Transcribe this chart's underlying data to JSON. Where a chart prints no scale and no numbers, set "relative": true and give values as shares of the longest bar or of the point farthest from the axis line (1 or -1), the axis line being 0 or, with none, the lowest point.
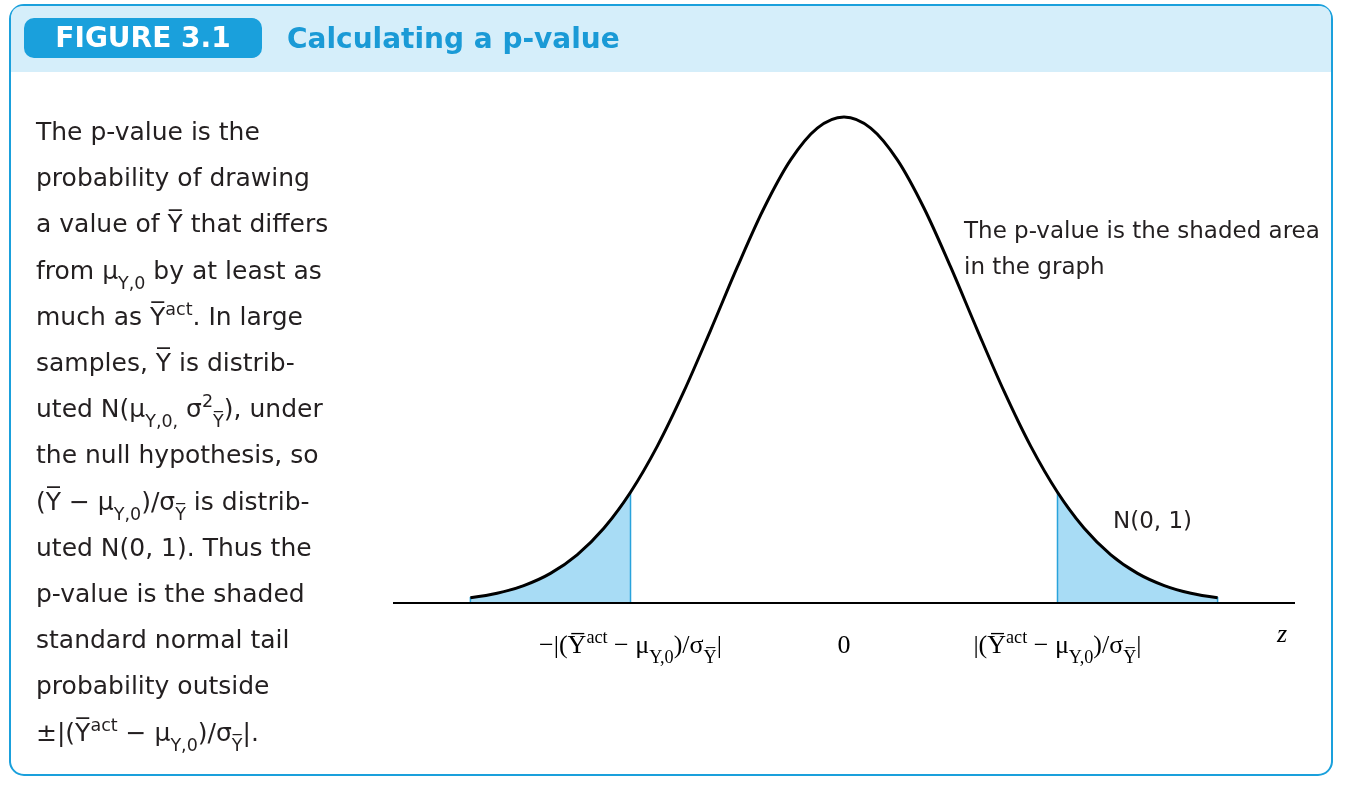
{
  "chart_data": {
    "type": "line",
    "title": "FIGURE 3.1",
    "subtitle": "Calculating a p-value",
    "xlabel": "z",
    "relative": true,
    "categories": [
      null,
      null,
      null,
      null,
      null,
      null,
      "−|(Y̅$^{act}$ − μ$_{Y,0}$)/σ$_{Y̅}$|",
      null,
      null,
      null,
      null,
      null,
      null,
      null,
      "0",
      null,
      null,
      null,
      null,
      null,
      null,
      null,
      "|(Y̅$^{act}$ − μ$_{Y,0}$)/σ$_{Y̅}$|",
      null,
      null,
      null,
      null,
      null,
      null
    ],
    "series": [
      {
        "type": "area",
        "color": "#a8dcf5",
        "values": [
          0.0108,
          0.0201,
          0.0359,
          0.061,
          0.0992,
          0.1538,
          0.2279,
          null,
          null,
          null,
          null,
          null,
          null,
          null,
          null,
          null,
          null,
          null,
          null,
          null,
          null,
          null,
          0.2279,
          0.1538,
          0.0992,
          0.061,
          0.0359,
          0.0201,
          0.0108
        ]
      },
      {
        "type": "line",
        "color": "#000000",
        "values": [
          0.0108,
          0.0201,
          0.0359,
          0.061,
          0.0992,
          0.1538,
          0.2279,
          0.3222,
          0.4352,
          0.5611,
          0.6909,
          0.8122,
          0.9117,
          0.9771,
          1,
          0.9771,
          0.9117,
          0.8122,
          0.6909,
          0.5611,
          0.4352,
          0.3222,
          0.2279,
          0.1538,
          0.0992,
          0.061,
          0.0359,
          0.0201,
          0.0108
        ]
      }
    ],
    "annotations": [
      "The p-value is the\nprobability of drawing\na value of Y̅ that differs\nfrom μ$_{Y,0}$ by at least as\nmuch as Y̅$^{act}$. In large\nsamples, Y̅ is distrib-\nuted N(μ$_{Y,0,}$ σ$^{2}$$_{Y̅}$), under\nthe null hypothesis, so\n(Y̅ − μ$_{Y,0}$)/σ$_{Y̅}$ is distrib-\nuted N(0, 1). Thus the\np-value is the shaded\nstandard normal tail\nprobability outside\n±|(Y̅$^{act}$ − μ$_{Y,0}$)/σ$_{Y̅}$|.",
      "The p-value is the shaded area\nin the graph",
      "N(0, 1)"
    ]
  }
}
